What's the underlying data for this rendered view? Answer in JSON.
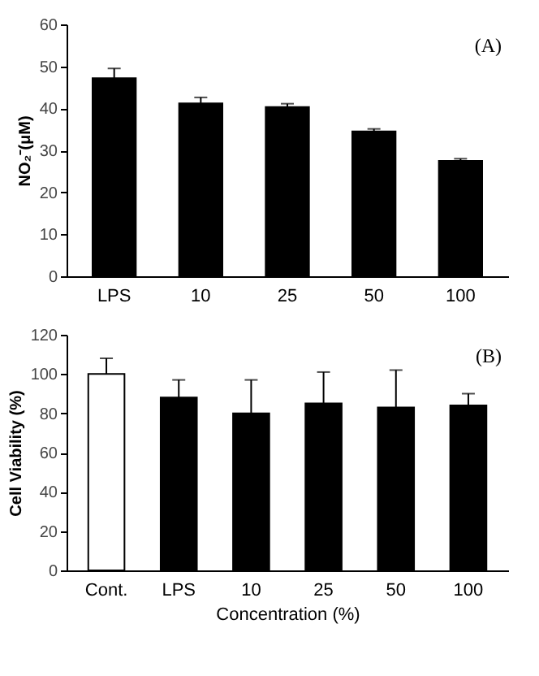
{
  "chart_data": [
    {
      "type": "bar",
      "categories": [
        "LPS",
        "10",
        "25",
        "50",
        "100"
      ],
      "values": [
        47.2,
        41.2,
        40.3,
        34.5,
        27.5
      ],
      "colors": [
        "#000000",
        "#000000",
        "#000000",
        "#000000",
        "#000000"
      ],
      "errors": [
        [
          47.2,
          49.5
        ],
        [
          41.2,
          42.6
        ],
        [
          40.3,
          41.1
        ],
        [
          34.5,
          35.1
        ],
        [
          27.5,
          28.0
        ]
      ],
      "ylabel": "NO₂⁻(μM)",
      "ylim": [
        0,
        60
      ],
      "yticks": [
        0,
        10,
        20,
        30,
        40,
        50,
        60
      ],
      "annotations": [
        "(A)"
      ],
      "grid": false
    },
    {
      "type": "bar",
      "categories": [
        "Cont.",
        "LPS",
        "10",
        "25",
        "50",
        "100"
      ],
      "values": [
        100,
        88,
        80,
        85,
        83,
        84
      ],
      "colors": [
        "#ffffff",
        "#000000",
        "#000000",
        "#000000",
        "#000000",
        "#000000"
      ],
      "errors": [
        [
          100,
          108
        ],
        [
          88,
          97
        ],
        [
          80,
          97
        ],
        [
          85,
          101
        ],
        [
          83,
          102
        ],
        [
          84,
          90
        ]
      ],
      "xlabel": "Concentration (%)",
      "ylabel": "Cell Viability (%)",
      "ylim": [
        0,
        120
      ],
      "yticks": [
        0,
        20,
        40,
        60,
        80,
        100,
        120
      ],
      "annotations": [
        "(B)"
      ],
      "grid": false
    }
  ]
}
